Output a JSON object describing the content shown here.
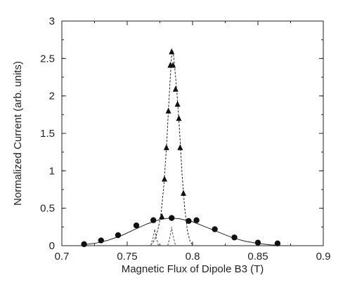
{
  "chart_data": {
    "type": "scatter",
    "title": "",
    "xlabel": "Magnetic Flux of Dipole B3  (T)",
    "ylabel": "Normalized Current  (arb. units)",
    "xlim": [
      0.7,
      0.9
    ],
    "ylim": [
      0,
      3
    ],
    "x_ticks": [
      "0.7",
      "0.75",
      "0.8",
      "0.85",
      "0.9"
    ],
    "y_ticks": [
      "0",
      "0.5",
      "1",
      "1.5",
      "2",
      "2.5",
      "3"
    ],
    "grid": false,
    "legend": "none",
    "series": [
      {
        "marker": "triangle",
        "line_style": "dotted",
        "points": [
          {
            "x": 0.7765,
            "y": 0.39
          },
          {
            "x": 0.7785,
            "y": 0.89
          },
          {
            "x": 0.78,
            "y": 1.31
          },
          {
            "x": 0.7815,
            "y": 1.8
          },
          {
            "x": 0.783,
            "y": 2.41
          },
          {
            "x": 0.784,
            "y": 2.59
          },
          {
            "x": 0.785,
            "y": 2.41
          },
          {
            "x": 0.787,
            "y": 2.09
          },
          {
            "x": 0.7885,
            "y": 1.89
          },
          {
            "x": 0.7895,
            "y": 1.7
          },
          {
            "x": 0.7905,
            "y": 1.31
          },
          {
            "x": 0.793,
            "y": 0.7
          }
        ],
        "fit_curve": [
          [
            0.768,
            0.01
          ],
          [
            0.77,
            0.05
          ],
          [
            0.772,
            0.12
          ],
          [
            0.774,
            0.25
          ],
          [
            0.776,
            0.45
          ],
          [
            0.778,
            0.8
          ],
          [
            0.78,
            1.3
          ],
          [
            0.782,
            1.95
          ],
          [
            0.784,
            2.55
          ],
          [
            0.785,
            2.6
          ],
          [
            0.786,
            2.45
          ],
          [
            0.788,
            2.05
          ],
          [
            0.79,
            1.55
          ],
          [
            0.792,
            0.95
          ],
          [
            0.794,
            0.5
          ],
          [
            0.796,
            0.2
          ],
          [
            0.798,
            0.06
          ],
          [
            0.8,
            0.01
          ]
        ],
        "sub_peaks": [
          [
            [
              0.768,
              0.0
            ],
            [
              0.77,
              0.12
            ],
            [
              0.771,
              0.22
            ],
            [
              0.772,
              0.12
            ],
            [
              0.774,
              0.0
            ]
          ],
          [
            [
              0.781,
              0.0
            ],
            [
              0.783,
              0.14
            ],
            [
              0.784,
              0.25
            ],
            [
              0.785,
              0.14
            ],
            [
              0.787,
              0.0
            ]
          ]
        ]
      },
      {
        "marker": "circle",
        "line_style": "solid",
        "points": [
          {
            "x": 0.717,
            "y": 0.02
          },
          {
            "x": 0.73,
            "y": 0.07
          },
          {
            "x": 0.743,
            "y": 0.14
          },
          {
            "x": 0.757,
            "y": 0.27
          },
          {
            "x": 0.77,
            "y": 0.34
          },
          {
            "x": 0.784,
            "y": 0.37
          },
          {
            "x": 0.797,
            "y": 0.33
          },
          {
            "x": 0.803,
            "y": 0.34
          },
          {
            "x": 0.817,
            "y": 0.22
          },
          {
            "x": 0.832,
            "y": 0.11
          },
          {
            "x": 0.85,
            "y": 0.04
          },
          {
            "x": 0.865,
            "y": 0.03
          }
        ],
        "fit_curve": [
          [
            0.715,
            0.01
          ],
          [
            0.725,
            0.03
          ],
          [
            0.735,
            0.07
          ],
          [
            0.745,
            0.13
          ],
          [
            0.755,
            0.21
          ],
          [
            0.765,
            0.29
          ],
          [
            0.775,
            0.35
          ],
          [
            0.783,
            0.37
          ],
          [
            0.79,
            0.36
          ],
          [
            0.8,
            0.32
          ],
          [
            0.81,
            0.25
          ],
          [
            0.82,
            0.18
          ],
          [
            0.83,
            0.11
          ],
          [
            0.84,
            0.06
          ],
          [
            0.85,
            0.03
          ],
          [
            0.86,
            0.01
          ],
          [
            0.867,
            0.005
          ]
        ]
      }
    ]
  }
}
